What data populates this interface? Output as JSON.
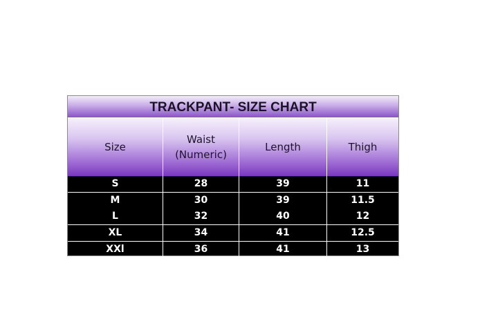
{
  "title": "TRACKPANT- SIZE CHART",
  "headers": [
    "Size",
    "Waist",
    "(Numeric)",
    "Length",
    "Thigh"
  ],
  "rows": [
    [
      "S",
      "28",
      "39",
      "11"
    ],
    [
      "M",
      "30",
      "39",
      "11.5"
    ],
    [
      "L",
      "32",
      "40",
      "12"
    ],
    [
      "XL",
      "34",
      "41",
      "12.5"
    ],
    [
      "XXl",
      "36",
      "41",
      "13"
    ]
  ],
  "colors": {
    "header_purple": "#7a38c0",
    "body": "#000000",
    "text": "#ffffff"
  }
}
